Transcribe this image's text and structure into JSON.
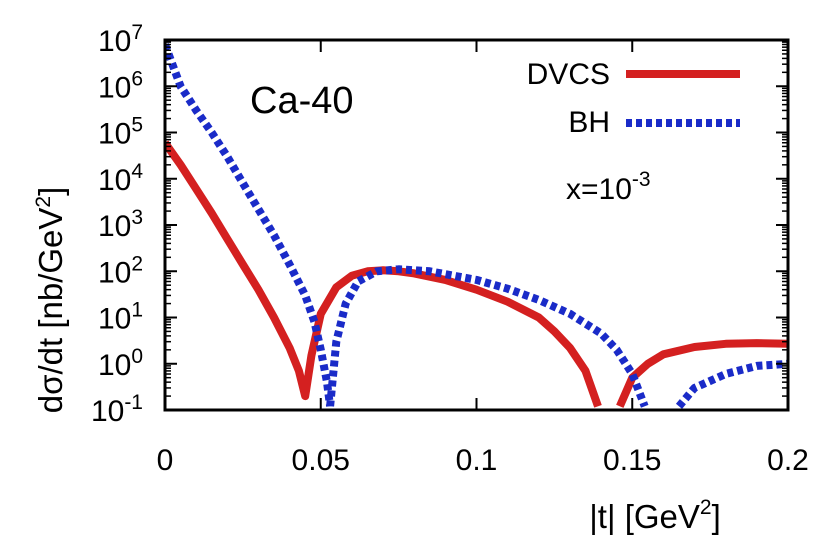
{
  "chart_data": {
    "type": "line",
    "xlabel": "|t| [GeV",
    "xlabel_sup": "2",
    "xlabel_suffix": "]",
    "ylabel": "dσ/dt [nb/GeV",
    "ylabel_sup": "2",
    "ylabel_suffix": "]",
    "xlim": [
      0,
      0.2
    ],
    "ylim": [
      0.1,
      10000000
    ],
    "yscale": "log",
    "grid": false,
    "legend_position": "top-right",
    "x_ticks": [
      {
        "value": 0,
        "label": "0"
      },
      {
        "value": 0.05,
        "label": "0.05"
      },
      {
        "value": 0.1,
        "label": "0.1"
      },
      {
        "value": 0.15,
        "label": "0.15"
      },
      {
        "value": 0.2,
        "label": "0.2"
      }
    ],
    "y_ticks": [
      {
        "value": 0.1,
        "base": "10",
        "exp": "-1"
      },
      {
        "value": 1,
        "base": "10",
        "exp": "0"
      },
      {
        "value": 10,
        "base": "10",
        "exp": "1"
      },
      {
        "value": 100,
        "base": "10",
        "exp": "2"
      },
      {
        "value": 1000,
        "base": "10",
        "exp": "3"
      },
      {
        "value": 10000,
        "base": "10",
        "exp": "4"
      },
      {
        "value": 100000,
        "base": "10",
        "exp": "5"
      },
      {
        "value": 1000000,
        "base": "10",
        "exp": "6"
      },
      {
        "value": 10000000,
        "base": "10",
        "exp": "7"
      }
    ],
    "annotations": {
      "nucleus": "Ca-40",
      "x_text": "x=10",
      "x_exp": "-3"
    },
    "series": [
      {
        "name": "DVCS",
        "color": "#d42020",
        "style": "solid",
        "points": [
          [
            0.0,
            60000
          ],
          [
            0.005,
            20000
          ],
          [
            0.01,
            6000
          ],
          [
            0.015,
            1800
          ],
          [
            0.02,
            500
          ],
          [
            0.025,
            140
          ],
          [
            0.03,
            40
          ],
          [
            0.035,
            10
          ],
          [
            0.04,
            2.2
          ],
          [
            0.043,
            0.7
          ],
          [
            0.045,
            0.2
          ],
          [
            0.047,
            1.5
          ],
          [
            0.05,
            12
          ],
          [
            0.055,
            45
          ],
          [
            0.06,
            80
          ],
          [
            0.065,
            100
          ],
          [
            0.07,
            105
          ],
          [
            0.075,
            100
          ],
          [
            0.08,
            90
          ],
          [
            0.09,
            65
          ],
          [
            0.1,
            40
          ],
          [
            0.11,
            22
          ],
          [
            0.12,
            10
          ],
          [
            0.125,
            5
          ],
          [
            0.13,
            2.2
          ],
          [
            0.135,
            0.7
          ],
          [
            0.139,
            0.12
          ]
        ],
        "points2": [
          [
            0.146,
            0.12
          ],
          [
            0.15,
            0.5
          ],
          [
            0.155,
            1.0
          ],
          [
            0.16,
            1.6
          ],
          [
            0.17,
            2.3
          ],
          [
            0.18,
            2.7
          ],
          [
            0.19,
            2.8
          ],
          [
            0.2,
            2.7
          ]
        ]
      },
      {
        "name": "BH",
        "color": "#1a2bc8",
        "style": "dotted",
        "points": [
          [
            0.0,
            8000000
          ],
          [
            0.005,
            1000000
          ],
          [
            0.01,
            300000
          ],
          [
            0.015,
            100000
          ],
          [
            0.02,
            30000
          ],
          [
            0.025,
            8000
          ],
          [
            0.03,
            2200
          ],
          [
            0.035,
            600
          ],
          [
            0.04,
            140
          ],
          [
            0.045,
            30
          ],
          [
            0.048,
            8
          ],
          [
            0.05,
            2
          ],
          [
            0.052,
            0.4
          ],
          [
            0.053,
            0.12
          ]
        ],
        "points2": [
          [
            0.053,
            0.12
          ],
          [
            0.055,
            3
          ],
          [
            0.058,
            20
          ],
          [
            0.062,
            60
          ],
          [
            0.068,
            100
          ],
          [
            0.075,
            110
          ],
          [
            0.085,
            100
          ],
          [
            0.1,
            65
          ],
          [
            0.11,
            42
          ],
          [
            0.12,
            24
          ],
          [
            0.13,
            12
          ],
          [
            0.14,
            4.5
          ],
          [
            0.145,
            2
          ],
          [
            0.15,
            0.6
          ],
          [
            0.154,
            0.12
          ]
        ],
        "points3": [
          [
            0.165,
            0.12
          ],
          [
            0.17,
            0.3
          ],
          [
            0.18,
            0.6
          ],
          [
            0.19,
            0.9
          ],
          [
            0.2,
            1.0
          ]
        ]
      }
    ]
  }
}
